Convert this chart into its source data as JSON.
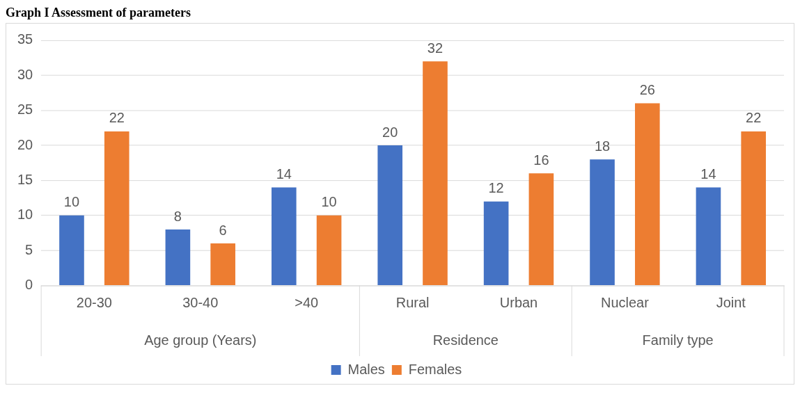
{
  "chart_data": {
    "type": "bar",
    "title": "Graph I Assessment of parameters",
    "categories": [
      "20-30",
      "30-40",
      ">40",
      "Rural",
      "Urban",
      "Nuclear",
      "Joint"
    ],
    "series": [
      {
        "name": "Males",
        "color": "#4472c4",
        "values": [
          10,
          8,
          14,
          20,
          12,
          18,
          14
        ]
      },
      {
        "name": "Females",
        "color": "#ed7d31",
        "values": [
          22,
          6,
          10,
          32,
          16,
          26,
          22
        ]
      }
    ],
    "annotations": [
      "Age group (Years)",
      "Residence",
      "Family type"
    ],
    "ylim": [
      0,
      35
    ],
    "yticks": [
      0,
      5,
      10,
      15,
      20,
      25,
      30,
      35
    ],
    "grid": "y",
    "legend": "bottom",
    "data_labels": true
  }
}
